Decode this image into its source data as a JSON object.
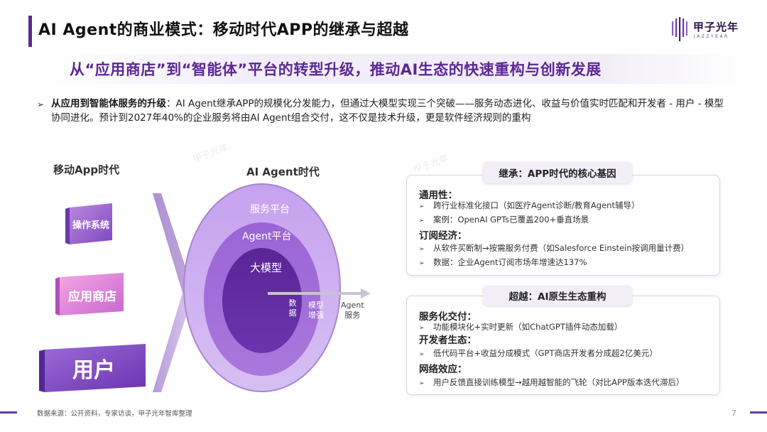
{
  "header": {
    "title": "AI Agent的商业模式：移动时代APP的继承与超越",
    "logo_text": "甲子光年",
    "logo_sub": "JAZZYEAR"
  },
  "subtitle": "从“应用商店”到“智能体”平台的转型升级，推动AI生态的快速重构与创新发展",
  "intro": {
    "bullet": "➢",
    "bold": "从应用到智能体服务的升级",
    "text": "：AI Agent继承APP的规模化分发能力，但通过大模型实现三个突破——服务动态进化、收益与价值实时匹配和开发者 - 用户 - 模型协同进化。预计到2027年40%的企业服务将由AI Agent组合交付，这不仅是技术升级，更是软件经济规则的重构"
  },
  "left": {
    "heading": "移动App时代",
    "items": [
      "操作系统",
      "应用商店",
      "用户"
    ]
  },
  "middle": {
    "heading": "AI Agent时代",
    "layers": [
      "服务平台",
      "Agent平台",
      "大模型"
    ],
    "flow_labels": [
      "数\n据",
      "模型\n增强",
      "Agent\n服务"
    ]
  },
  "inherit": {
    "tag": "继承：APP时代的核心基因",
    "sections": [
      {
        "head": "通用性：",
        "items": [
          "跨行业标准化接口（如医疗Agent诊断/教育Agent辅导）",
          "案例：OpenAI GPTs已覆盖200+垂直场景"
        ]
      },
      {
        "head": "订阅经济：",
        "items": [
          "从软件买断制→按需服务付费（如Salesforce Einstein按调用量计费）",
          "数据：企业Agent订阅市场年增速达137%"
        ]
      }
    ]
  },
  "surpass": {
    "tag": "超越：AI原生生态重构",
    "sections": [
      {
        "head": "服务化交付：",
        "items": [
          "功能模块化+实时更新（如ChatGPT插件动态加载）"
        ]
      },
      {
        "head": "开发者生态：",
        "items": [
          "低代码平台+收益分成模式（GPT商店开发者分成超2亿美元）"
        ]
      },
      {
        "head": "网络效应：",
        "items": [
          "用户反馈直接训练模型→越用越智能的飞轮（对比APP版本迭代滞后）"
        ]
      }
    ]
  },
  "footer": {
    "source": "数据来源：公开资料，专家访谈，甲子光年智库整理",
    "page": "7"
  },
  "colors": {
    "brand_purple": "#5b2894",
    "light_purple": "#c9a8ea",
    "mid_purple": "#8a52c8",
    "deep_purple": "#5a2a98"
  }
}
